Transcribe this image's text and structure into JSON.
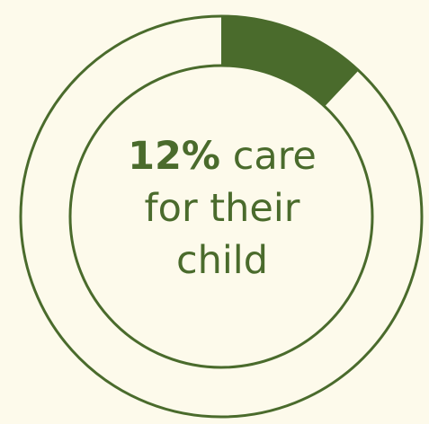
{
  "chart_data": {
    "type": "pie",
    "style": "donut",
    "slices": [
      {
        "label": "care for their child",
        "value": 12
      },
      {
        "label": "",
        "value": 88
      }
    ],
    "center_text": {
      "value": "12%",
      "line1_rest": "care",
      "line2": "for their",
      "line3": "child"
    },
    "colors": {
      "accent": "#4a6b2c",
      "background": "#fdfaeb"
    }
  }
}
